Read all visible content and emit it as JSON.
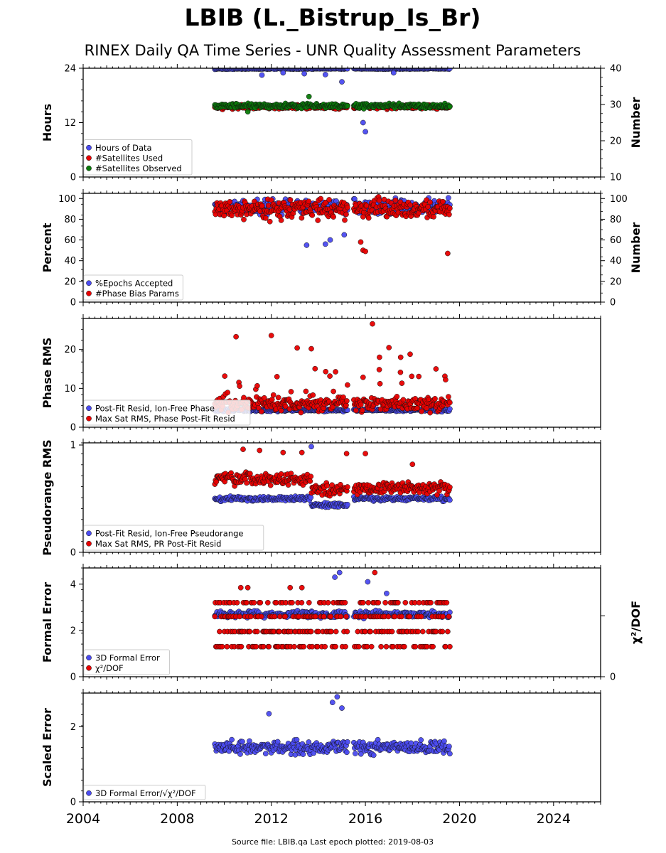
{
  "chart_data": {
    "type": "scatter",
    "title": "LBIB (L._Bistrup_Is_Br)",
    "subtitle": "RINEX Daily QA Time Series - UNR Quality Assessment Parameters",
    "footer": "Source file: LBIB.qa Last epoch plotted: 2019-08-03",
    "x_range": [
      2004,
      2026
    ],
    "x_ticks": [
      "2004",
      "2008",
      "2012",
      "2016",
      "2020",
      "2024"
    ],
    "data_span": [
      2009.6,
      2019.6
    ],
    "data_gap": [
      2015.25,
      2015.5
    ],
    "panels": [
      {
        "id": "hours",
        "ylabel": "Hours",
        "ylim": [
          0,
          24
        ],
        "yticks": [
          "0",
          "12",
          "24"
        ],
        "y2label": "Number",
        "y2lim": [
          10,
          40
        ],
        "y2ticks": [
          "10",
          "20",
          "30",
          "40"
        ],
        "legend_placement": "lower-left",
        "series": [
          {
            "name": "Hours of Data",
            "color": "#4b4bf0",
            "axis": "left",
            "base": 23.9,
            "spread": 0.2,
            "outliers": [
              [
                2011.6,
                22.5
              ],
              [
                2012.5,
                23.0
              ],
              [
                2013.4,
                22.8
              ],
              [
                2014.3,
                22.6
              ],
              [
                2015.0,
                21.0
              ],
              [
                2015.9,
                12.0
              ],
              [
                2016.0,
                10.0
              ],
              [
                2017.2,
                23.0
              ]
            ]
          },
          {
            "name": "#Satellites Used",
            "color": "#e80000",
            "axis": "right",
            "base": 29.3,
            "spread": 0.8,
            "outliers": []
          },
          {
            "name": "#Satellites Observed",
            "color": "#0a7a0a",
            "axis": "right",
            "base": 29.6,
            "spread": 0.9,
            "outliers": [
              [
                2013.6,
                32.2
              ],
              [
                2011.0,
                28.0
              ]
            ]
          }
        ]
      },
      {
        "id": "percent",
        "ylabel": "Percent",
        "ylim": [
          0,
          105
        ],
        "yticks": [
          "0",
          "20",
          "40",
          "60",
          "80",
          "100"
        ],
        "y2label": "Number",
        "y2lim": [
          0,
          105
        ],
        "y2ticks": [
          "0",
          "20",
          "40",
          "60",
          "80",
          "100"
        ],
        "legend_placement": "lower-left",
        "series": [
          {
            "name": "%Epochs Accepted",
            "color": "#4b4bf0",
            "axis": "left",
            "base": 92,
            "spread": 10,
            "outliers": [
              [
                2014.3,
                56
              ],
              [
                2014.5,
                60
              ],
              [
                2013.5,
                55
              ],
              [
                2015.1,
                65
              ]
            ]
          },
          {
            "name": "#Phase Bias Params",
            "color": "#e80000",
            "axis": "right",
            "base": 90,
            "spread": 13,
            "outliers": [
              [
                2015.9,
                50
              ],
              [
                2016.0,
                49
              ],
              [
                2019.5,
                47
              ],
              [
                2015.8,
                58
              ]
            ]
          }
        ]
      },
      {
        "id": "phase",
        "ylabel": "Phase RMS",
        "ylim": [
          0,
          28
        ],
        "yticks": [
          "0",
          "10",
          "20"
        ],
        "legend_placement": "lower-left",
        "series": [
          {
            "name": "Post-Fit Resid, Ion-Free Phase",
            "color": "#4b4bf0",
            "axis": "left",
            "base": 4.4,
            "spread": 0.5,
            "outliers": []
          },
          {
            "name": "Max Sat RMS, Phase Post-Fit Resid",
            "color": "#e80000",
            "axis": "left",
            "base": 6.0,
            "spread": 2.5,
            "outliers": [
              [
                2010.5,
                23.3
              ],
              [
                2012.0,
                23.6
              ],
              [
                2016.3,
                26.6
              ],
              [
                2013.1,
                20.4
              ],
              [
                2013.7,
                20.2
              ],
              [
                2017.0,
                20.5
              ],
              [
                2017.9,
                18.8
              ],
              [
                2017.5,
                18.0
              ],
              [
                2016.6,
                18.0
              ],
              [
                2019.0,
                15.0
              ]
            ]
          }
        ]
      },
      {
        "id": "pseudorange",
        "ylabel": "Pseudorange RMS",
        "ylim": [
          0,
          1.02
        ],
        "yticks": [
          "0",
          "1"
        ],
        "legend_placement": "lower-left",
        "series": [
          {
            "name": "Post-Fit Resid, Ion-Free Pseudorange",
            "color": "#4b4bf0",
            "axis": "left",
            "base": 0.5,
            "spread": 0.03,
            "outliers": [
              [
                2013.7,
                0.985
              ]
            ]
          },
          {
            "name": "Max Sat RMS, PR Post-Fit Resid",
            "color": "#e80000",
            "axis": "left",
            "base": 0.68,
            "spread": 0.08,
            "outliers": [
              [
                2010.8,
                0.96
              ],
              [
                2011.5,
                0.95
              ],
              [
                2012.5,
                0.93
              ],
              [
                2013.3,
                0.93
              ],
              [
                2015.2,
                0.92
              ],
              [
                2016.0,
                0.92
              ],
              [
                2018.0,
                0.82
              ]
            ]
          }
        ]
      },
      {
        "id": "formal",
        "ylabel": "Formal Error",
        "ylim": [
          0,
          4.7
        ],
        "yticks": [
          "0",
          "2",
          "4"
        ],
        "y2label": "χ²/DOF",
        "y2ticks": [
          "0"
        ],
        "legend_placement": "lower-left",
        "series": [
          {
            "name": "3D Formal Error",
            "color": "#4b4bf0",
            "axis": "left",
            "base": 2.7,
            "spread": 0.2,
            "outliers": [
              [
                2014.9,
                4.5
              ],
              [
                2016.1,
                4.1
              ],
              [
                2016.9,
                3.6
              ],
              [
                2014.7,
                4.3
              ]
            ]
          },
          {
            "name": "χ²/DOF",
            "color": "#e80000",
            "axis": "left",
            "levels": [
              1.3,
              1.95,
              2.6,
              3.2
            ],
            "outliers": [
              [
                2010.7,
                3.85
              ],
              [
                2011.0,
                3.85
              ],
              [
                2012.8,
                3.85
              ],
              [
                2013.3,
                3.85
              ],
              [
                2016.4,
                4.5
              ]
            ]
          }
        ]
      },
      {
        "id": "scaled",
        "ylabel": "Scaled Error",
        "ylim": [
          0,
          2.9
        ],
        "yticks": [
          "0",
          "2"
        ],
        "legend_placement": "lower-left",
        "series": [
          {
            "name": "3D Formal Error/√χ²/DOF",
            "color": "#4b4bf0",
            "axis": "left",
            "base": 1.45,
            "spread": 0.25,
            "outliers": [
              [
                2014.8,
                2.8
              ],
              [
                2014.6,
                2.65
              ],
              [
                2011.9,
                2.35
              ],
              [
                2015.0,
                2.5
              ]
            ]
          }
        ]
      }
    ]
  }
}
